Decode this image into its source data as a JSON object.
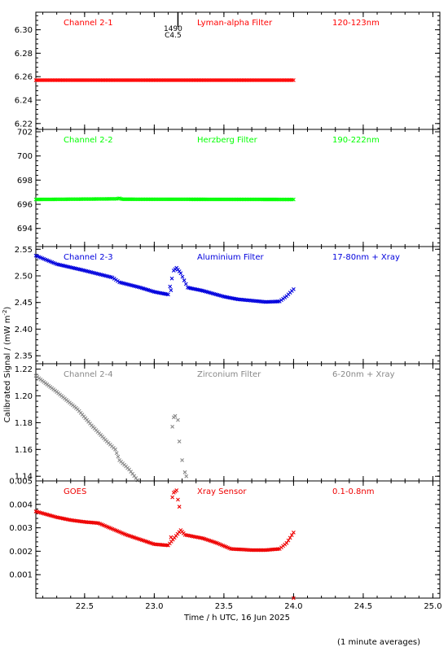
{
  "figure": {
    "ylabel": "Calibrated Signal / (mW m",
    "ylabel_sup": "-2",
    "ylabel_close": ")",
    "xlabel": "Time / h UTC, 16 Jun 2025",
    "footnote": "(1 minute averages)"
  },
  "chart_data": [
    {
      "type": "scatter",
      "panel": 1,
      "title": "Channel 2-1",
      "filter": "Lyman-alpha Filter",
      "band": "120-123nm",
      "color": "#ff0000",
      "ylim": [
        6.215,
        6.315
      ],
      "yticks": [
        6.22,
        6.24,
        6.26,
        6.28,
        6.3
      ],
      "xlim": [
        22.15,
        25.05
      ],
      "xticks": [
        22.5,
        23.0,
        23.5,
        24.0,
        24.5,
        25.0
      ],
      "grid": false,
      "flare_marker": {
        "x": 23.17,
        "label_top": "1490",
        "label_bottom": "C4.5"
      },
      "segments": [
        [
          22.15,
          6.257
        ],
        [
          24.0,
          6.257
        ]
      ],
      "spikes": []
    },
    {
      "type": "scatter",
      "panel": 2,
      "title": "Channel 2-2",
      "filter": "Herzberg Filter",
      "band": "190-222nm",
      "color": "#00ff00",
      "ylim": [
        692.5,
        702.2
      ],
      "yticks": [
        694,
        696,
        698,
        700,
        702
      ],
      "xlim": [
        22.15,
        25.05
      ],
      "xticks": [
        22.5,
        23.0,
        23.5,
        24.0,
        24.5,
        25.0
      ],
      "grid": false,
      "segments": [
        [
          22.15,
          696.4
        ],
        [
          22.73,
          696.45
        ],
        [
          22.75,
          696.5
        ],
        [
          22.77,
          696.42
        ],
        [
          24.0,
          696.4
        ]
      ],
      "spikes": []
    },
    {
      "type": "scatter",
      "panel": 3,
      "title": "Channel 2-3",
      "filter": "Aluminium Filter",
      "band": "17-80nm + Xray",
      "color": "#0000dd",
      "ylim": [
        2.335,
        2.555
      ],
      "yticks": [
        2.35,
        2.4,
        2.45,
        2.5,
        2.55
      ],
      "xlim": [
        22.15,
        25.05
      ],
      "xticks": [
        22.5,
        23.0,
        23.5,
        24.0,
        24.5,
        25.0
      ],
      "grid": false,
      "segments": [
        [
          22.15,
          2.538
        ],
        [
          22.3,
          2.522
        ],
        [
          22.5,
          2.51
        ],
        [
          22.7,
          2.497
        ],
        [
          22.75,
          2.488
        ],
        [
          22.9,
          2.478
        ],
        [
          23.0,
          2.47
        ],
        [
          23.1,
          2.465
        ],
        [
          23.14,
          2.51
        ],
        [
          23.16,
          2.515
        ],
        [
          23.19,
          2.505
        ],
        [
          23.24,
          2.478
        ],
        [
          23.35,
          2.472
        ],
        [
          23.5,
          2.461
        ],
        [
          23.6,
          2.456
        ],
        [
          23.8,
          2.451
        ],
        [
          23.9,
          2.452
        ],
        [
          23.95,
          2.462
        ],
        [
          24.0,
          2.475
        ]
      ],
      "spikes": [
        [
          23.12,
          2.473
        ]
      ]
    },
    {
      "type": "scatter",
      "panel": 4,
      "title": "Channel 2-4",
      "filter": "Zirconium Filter",
      "band": "6-20nm + Xray",
      "color": "#888888",
      "ylim": [
        1.1365,
        1.224
      ],
      "yticks": [
        1.14,
        1.16,
        1.18,
        1.2,
        1.22
      ],
      "xlim": [
        22.15,
        25.05
      ],
      "xticks": [
        22.5,
        23.0,
        23.5,
        24.0,
        24.5,
        25.0
      ],
      "grid": false,
      "segments": [
        [
          22.15,
          1.215
        ],
        [
          22.3,
          1.203
        ],
        [
          22.45,
          1.19
        ],
        [
          22.55,
          1.178
        ],
        [
          22.66,
          1.166
        ],
        [
          22.72,
          1.16
        ],
        [
          22.75,
          1.152
        ],
        [
          22.82,
          1.145
        ],
        [
          22.88,
          1.137
        ]
      ],
      "spikes": [
        [
          23.13,
          1.177
        ],
        [
          23.14,
          1.184
        ],
        [
          23.15,
          1.185
        ],
        [
          23.17,
          1.182
        ],
        [
          23.18,
          1.166
        ],
        [
          23.2,
          1.152
        ],
        [
          23.22,
          1.143
        ],
        [
          23.23,
          1.14
        ]
      ]
    },
    {
      "type": "scatter",
      "panel": 5,
      "title": "GOES",
      "filter": "Xray Sensor",
      "band": "0.1-0.8nm",
      "color": "#ee0000",
      "ylim": [
        0.0,
        0.005
      ],
      "yticks": [
        0.001,
        0.002,
        0.003,
        0.004,
        0.005
      ],
      "xlim": [
        22.15,
        25.05
      ],
      "xticks": [
        22.5,
        23.0,
        23.5,
        24.0,
        24.5,
        25.0
      ],
      "grid": false,
      "segments": [
        [
          22.15,
          0.0037
        ],
        [
          22.3,
          0.00345
        ],
        [
          22.4,
          0.00333
        ],
        [
          22.5,
          0.00325
        ],
        [
          22.6,
          0.0032
        ],
        [
          22.7,
          0.00295
        ],
        [
          22.8,
          0.0027
        ],
        [
          22.9,
          0.0025
        ],
        [
          23.0,
          0.0023
        ],
        [
          23.1,
          0.00225
        ],
        [
          23.19,
          0.0029
        ],
        [
          23.22,
          0.0027
        ],
        [
          23.35,
          0.00255
        ],
        [
          23.45,
          0.00235
        ],
        [
          23.55,
          0.0021
        ],
        [
          23.7,
          0.00205
        ],
        [
          23.8,
          0.00205
        ],
        [
          23.9,
          0.0021
        ],
        [
          23.95,
          0.00235
        ],
        [
          24.0,
          0.0028
        ]
      ],
      "spikes": [
        [
          23.12,
          0.0026
        ],
        [
          23.13,
          0.0043
        ],
        [
          23.14,
          0.0045
        ],
        [
          23.15,
          0.00455
        ],
        [
          23.16,
          0.0046
        ],
        [
          23.17,
          0.0042
        ],
        [
          23.18,
          0.0039
        ],
        [
          24.0,
          0.0
        ]
      ]
    }
  ]
}
